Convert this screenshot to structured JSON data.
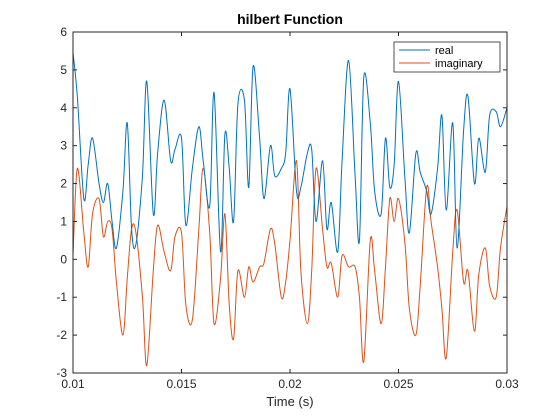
{
  "chart_data": {
    "type": "line",
    "title": "hilbert Function",
    "xlabel": "Time (s)",
    "ylabel": "",
    "xlim": [
      0.01,
      0.03
    ],
    "ylim": [
      -3,
      6
    ],
    "xticks": [
      0.01,
      0.015,
      0.02,
      0.025,
      0.03
    ],
    "xtick_labels": [
      "0.01",
      "0.015",
      "0.02",
      "0.025",
      "0.03"
    ],
    "yticks": [
      -3,
      -2,
      -1,
      0,
      1,
      2,
      3,
      4,
      5,
      6
    ],
    "ytick_labels": [
      "-3",
      "-2",
      "-1",
      "0",
      "1",
      "2",
      "3",
      "4",
      "5",
      "6"
    ],
    "grid": false,
    "legend_location": "top-right",
    "series": [
      {
        "name": "real",
        "color": "#0072BD",
        "x": [
          0.01,
          0.0102,
          0.0105,
          0.0107,
          0.0109,
          0.0112,
          0.0114,
          0.0116,
          0.0118,
          0.012,
          0.0123,
          0.0125,
          0.0127,
          0.0129,
          0.0132,
          0.0134,
          0.0137,
          0.0139,
          0.0142,
          0.0145,
          0.0147,
          0.015,
          0.0152,
          0.0155,
          0.0158,
          0.016,
          0.0163,
          0.0165,
          0.0168,
          0.017,
          0.0172,
          0.0174,
          0.0176,
          0.0179,
          0.0181,
          0.0183,
          0.0186,
          0.0188,
          0.0191,
          0.0193,
          0.0196,
          0.0198,
          0.02,
          0.0203,
          0.0205,
          0.0208,
          0.021,
          0.0212,
          0.0215,
          0.0217,
          0.0219,
          0.0222,
          0.0224,
          0.0227,
          0.023,
          0.0232,
          0.0234,
          0.0237,
          0.0239,
          0.0242,
          0.0244,
          0.0246,
          0.0248,
          0.025,
          0.0253,
          0.0255,
          0.0258,
          0.026,
          0.0263,
          0.0265,
          0.0268,
          0.027,
          0.0272,
          0.0275,
          0.0277,
          0.028,
          0.0282,
          0.0285,
          0.0287,
          0.029,
          0.0292,
          0.0295,
          0.0297,
          0.03
        ],
        "y": [
          5.45,
          4.3,
          1.6,
          2.5,
          3.2,
          2.0,
          1.5,
          2.0,
          1.0,
          0.3,
          1.8,
          3.6,
          0.8,
          0.4,
          2.2,
          4.7,
          1.2,
          2.8,
          4.2,
          2.6,
          2.9,
          3.2,
          0.9,
          2.4,
          3.5,
          2.6,
          1.4,
          4.4,
          0.2,
          3.3,
          2.4,
          1.0,
          4.1,
          4.2,
          1.9,
          5.1,
          3.2,
          1.6,
          3.0,
          2.2,
          2.4,
          2.8,
          4.5,
          1.8,
          1.9,
          2.8,
          2.9,
          1.0,
          2.6,
          0.8,
          1.5,
          0.2,
          2.6,
          5.25,
          2.2,
          0.5,
          4.8,
          3.6,
          1.8,
          1.2,
          3.2,
          1.9,
          2.5,
          4.7,
          2.1,
          0.7,
          2.8,
          2.3,
          1.8,
          1.2,
          2.4,
          3.8,
          1.3,
          3.6,
          0.3,
          3.4,
          4.3,
          2.0,
          3.2,
          2.3,
          3.8,
          3.9,
          3.5,
          4.0
        ]
      },
      {
        "name": "imaginary",
        "color": "#D95319",
        "x": [
          0.01,
          0.0102,
          0.0105,
          0.0107,
          0.0109,
          0.0112,
          0.0114,
          0.0116,
          0.0118,
          0.012,
          0.0123,
          0.0125,
          0.0127,
          0.0129,
          0.0132,
          0.0134,
          0.0137,
          0.0139,
          0.0142,
          0.0145,
          0.0147,
          0.015,
          0.0152,
          0.0155,
          0.0158,
          0.016,
          0.0163,
          0.0165,
          0.0168,
          0.017,
          0.0172,
          0.0174,
          0.0176,
          0.0179,
          0.0181,
          0.0183,
          0.0186,
          0.0188,
          0.0191,
          0.0193,
          0.0196,
          0.0198,
          0.02,
          0.0203,
          0.0205,
          0.0208,
          0.021,
          0.0212,
          0.0215,
          0.0217,
          0.0219,
          0.0222,
          0.0224,
          0.0227,
          0.023,
          0.0232,
          0.0234,
          0.0237,
          0.0239,
          0.0242,
          0.0244,
          0.0246,
          0.0248,
          0.025,
          0.0253,
          0.0255,
          0.0258,
          0.026,
          0.0263,
          0.0265,
          0.0268,
          0.027,
          0.0272,
          0.0275,
          0.0277,
          0.028,
          0.0282,
          0.0285,
          0.0287,
          0.029,
          0.0292,
          0.0295,
          0.0297,
          0.03
        ],
        "y": [
          0.1,
          2.4,
          0.7,
          -0.2,
          1.2,
          1.6,
          0.6,
          1.0,
          0.8,
          -0.6,
          -2.0,
          -0.5,
          0.8,
          0.7,
          -1.0,
          -2.8,
          -0.3,
          0.9,
          0.2,
          -0.3,
          0.6,
          0.7,
          -1.2,
          -1.6,
          0.8,
          2.4,
          0.7,
          -1.7,
          -0.5,
          1.2,
          -1.2,
          -2.1,
          -0.3,
          -1.0,
          -0.2,
          -0.6,
          -0.2,
          -0.1,
          0.8,
          0.4,
          -1.0,
          -0.6,
          0.5,
          2.6,
          -0.3,
          -1.7,
          -0.3,
          2.4,
          0.8,
          -0.2,
          -0.1,
          -1.0,
          0.1,
          -0.2,
          -0.2,
          -1.0,
          -2.7,
          0.5,
          -0.3,
          -1.7,
          -0.2,
          1.6,
          1.0,
          1.6,
          0.4,
          -1.3,
          -2.0,
          -0.7,
          1.9,
          1.0,
          -0.2,
          -1.3,
          -2.6,
          0.2,
          1.3,
          -0.6,
          -0.3,
          -1.9,
          -0.4,
          0.3,
          -0.7,
          -1.0,
          0.3,
          1.4
        ]
      }
    ]
  }
}
